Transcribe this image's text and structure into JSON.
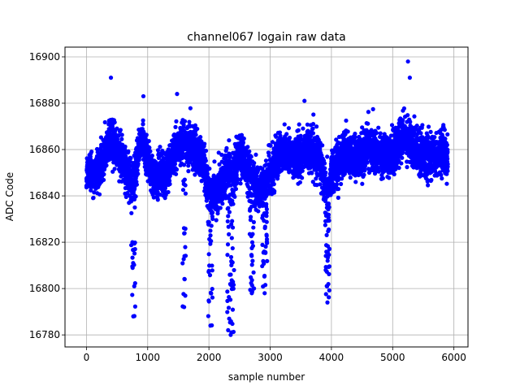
{
  "chart_data": {
    "type": "scatter",
    "title": "channel067 logain raw data",
    "xlabel": "sample number",
    "ylabel": "ADC Code",
    "xlim": [
      -350,
      6230
    ],
    "ylim": [
      16774.8,
      16904.2
    ],
    "xticks": [
      0,
      1000,
      2000,
      3000,
      4000,
      5000,
      6000
    ],
    "xtick_labels": [
      "0",
      "1000",
      "2000",
      "3000",
      "4000",
      "5000",
      "6000"
    ],
    "yticks": [
      16780,
      16800,
      16820,
      16840,
      16860,
      16880,
      16900
    ],
    "ytick_labels": [
      "16780",
      "16800",
      "16820",
      "16840",
      "16860",
      "16880",
      "16900"
    ],
    "grid": true,
    "marker_color": "#0000ff",
    "series": [
      {
        "x_start": 0,
        "x_end": 5900,
        "num_points": 5901,
        "trend": {
          "x": [
            0,
            200,
            400,
            600,
            750,
            900,
            1100,
            1300,
            1500,
            1700,
            1900,
            2000,
            2100,
            2300,
            2400,
            2500,
            2700,
            2800,
            3000,
            3200,
            3400,
            3600,
            3800,
            3950,
            4000,
            4200,
            4400,
            4600,
            4800,
            5000,
            5200,
            5400,
            5600,
            5800,
            5900
          ],
          "y": [
            16850,
            16850,
            16866,
            16855,
            16845,
            16865,
            16847,
            16850,
            16862,
            16862,
            16855,
            16842,
            16840,
            16852,
            16848,
            16860,
            16847,
            16842,
            16850,
            16860,
            16856,
            16860,
            16856,
            16840,
            16850,
            16858,
            16856,
            16862,
            16858,
            16858,
            16866,
            16860,
            16856,
            16858,
            16858
          ]
        },
        "noise_sd": 4.5,
        "spikes": [
          {
            "x": [
              730,
              800
            ],
            "min_y": 16788
          },
          {
            "x": [
              1570,
              1620
            ],
            "min_y": 16792
          },
          {
            "x": [
              1990,
              2060
            ],
            "min_y": 16784
          },
          {
            "x": [
              2300,
              2410
            ],
            "min_y": 16780
          },
          {
            "x": [
              2660,
              2740
            ],
            "min_y": 16798
          },
          {
            "x": [
              2870,
              2950
            ],
            "min_y": 16798
          },
          {
            "x": [
              3900,
              3970
            ],
            "min_y": 16794
          }
        ],
        "peaks": [
          {
            "x": 400,
            "y": 16891
          },
          {
            "x": 930,
            "y": 16883
          },
          {
            "x": 1480,
            "y": 16884
          },
          {
            "x": 3560,
            "y": 16881
          },
          {
            "x": 5250,
            "y": 16898
          },
          {
            "x": 5280,
            "y": 16891
          }
        ]
      }
    ]
  }
}
